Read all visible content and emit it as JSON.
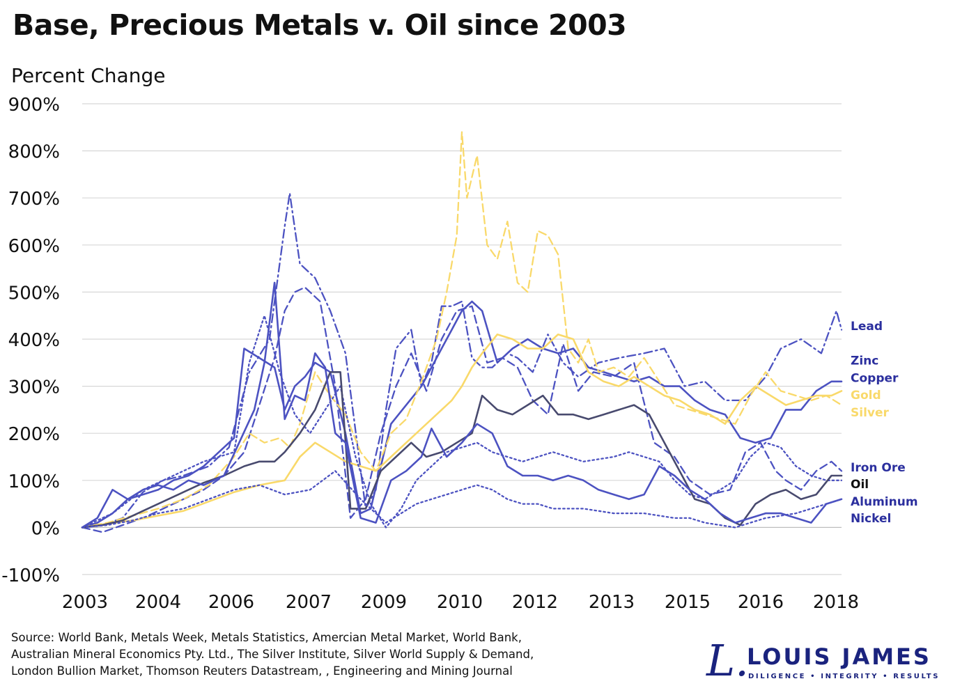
{
  "title": "Base, Precious Metals v. Oil since 2003",
  "ylabel": "Percent Change",
  "source_lines": [
    "Source: World Bank, Metals Week, Metals Statistics, Amercian Metal Market, World Bank,",
    "Australian Mineral Economics Pty. Ltd., The Silver Institute, Silver World Supply & Demand,",
    "London Bullion Market, Thomson Reuters Datastream, , Engineering and Mining Journal"
  ],
  "logo": {
    "mark": "L.",
    "name": "LOUIS JAMES",
    "tagline": "DILIGENCE • INTEGRITY • RESULTS"
  },
  "colors": {
    "blue": "#4c52c1",
    "dark": "#484a6e",
    "gold": "#f9d96a",
    "grid": "#d7d7d7",
    "label_blue": "#2b2f9e"
  },
  "chart_data": {
    "type": "line",
    "xticks": [
      "2003",
      "2004",
      "2006",
      "2007",
      "2009",
      "2010",
      "2012",
      "2013",
      "2015",
      "2016",
      "2018"
    ],
    "ylim": [
      -100,
      900
    ],
    "yticks": [
      -100,
      0,
      100,
      200,
      300,
      400,
      500,
      600,
      700,
      800,
      900
    ],
    "ytick_labels": [
      "-100%",
      "0%",
      "100%",
      "200%",
      "300%",
      "400%",
      "500%",
      "600%",
      "700%",
      "800%",
      "900%"
    ],
    "grid": true,
    "x_unit": "year",
    "xlim": [
      2003.0,
      2018.0
    ],
    "series": [
      {
        "name": "Lead",
        "color": "#4c52c1",
        "dash": "dashdot",
        "x": [
          2003.0,
          2003.4,
          2003.8,
          2004.2,
          2004.6,
          2005.0,
          2005.5,
          2005.9,
          2006.3,
          2006.7,
          2007.0,
          2007.1,
          2007.3,
          2007.6,
          2007.9,
          2008.2,
          2008.6,
          2008.8,
          2009.0,
          2009.2,
          2009.5,
          2009.7,
          2009.9,
          2010.1,
          2010.3,
          2010.5,
          2010.7,
          2010.9,
          2011.1,
          2011.4,
          2011.6,
          2011.9,
          2012.2,
          2012.5,
          2012.8,
          2013.2,
          2013.6,
          2014.1,
          2014.5,
          2014.9,
          2015.3,
          2015.7,
          2016.1,
          2016.5,
          2016.8,
          2017.2,
          2017.6,
          2017.9,
          2018.0
        ],
        "y": [
          0,
          5,
          20,
          75,
          100,
          110,
          130,
          170,
          330,
          400,
          640,
          710,
          560,
          530,
          460,
          370,
          40,
          80,
          250,
          380,
          420,
          300,
          350,
          470,
          470,
          480,
          360,
          340,
          340,
          370,
          360,
          330,
          410,
          350,
          320,
          350,
          360,
          370,
          380,
          300,
          310,
          270,
          270,
          320,
          380,
          400,
          370,
          460,
          420
        ]
      },
      {
        "name": "Zinc",
        "color": "#4c52c1",
        "dash": "dash",
        "x": [
          2003.0,
          2003.4,
          2003.8,
          2004.2,
          2004.6,
          2005.0,
          2005.4,
          2005.8,
          2006.2,
          2006.5,
          2006.8,
          2007.0,
          2007.2,
          2007.4,
          2007.7,
          2008.0,
          2008.3,
          2008.6,
          2008.9,
          2009.2,
          2009.5,
          2009.8,
          2010.1,
          2010.4,
          2010.7,
          2011.0,
          2011.3,
          2011.6,
          2011.9,
          2012.2,
          2012.5,
          2012.8,
          2013.1,
          2013.5,
          2013.9,
          2014.3,
          2014.7,
          2015.0,
          2015.4,
          2015.8,
          2016.1,
          2016.4,
          2016.7,
          2016.9,
          2017.2,
          2017.5,
          2017.8,
          2018.0
        ],
        "y": [
          0,
          -10,
          5,
          20,
          40,
          60,
          80,
          110,
          160,
          260,
          360,
          460,
          500,
          510,
          480,
          300,
          20,
          60,
          200,
          300,
          370,
          290,
          400,
          460,
          470,
          350,
          360,
          340,
          270,
          240,
          390,
          290,
          330,
          320,
          350,
          180,
          150,
          100,
          70,
          80,
          160,
          180,
          120,
          100,
          80,
          120,
          140,
          120
        ]
      },
      {
        "name": "Copper",
        "color": "#4c52c1",
        "dash": "solid",
        "x": [
          2003.0,
          2003.3,
          2003.6,
          2003.9,
          2004.2,
          2004.5,
          2004.8,
          2005.1,
          2005.4,
          2005.7,
          2006.0,
          2006.2,
          2006.5,
          2006.8,
          2007.0,
          2007.2,
          2007.4,
          2007.6,
          2007.9,
          2008.2,
          2008.5,
          2008.7,
          2008.9,
          2009.1,
          2009.4,
          2009.7,
          2009.9,
          2010.1,
          2010.3,
          2010.5,
          2010.7,
          2010.9,
          2011.2,
          2011.5,
          2011.8,
          2012.1,
          2012.4,
          2012.7,
          2013.0,
          2013.3,
          2013.6,
          2013.9,
          2014.2,
          2014.5,
          2014.8,
          2015.1,
          2015.4,
          2015.7,
          2016.0,
          2016.3,
          2016.6,
          2016.9,
          2017.2,
          2017.5,
          2017.8,
          2018.0
        ],
        "y": [
          0,
          10,
          30,
          60,
          70,
          80,
          100,
          110,
          130,
          160,
          190,
          380,
          360,
          340,
          250,
          300,
          320,
          350,
          330,
          200,
          30,
          40,
          130,
          220,
          260,
          300,
          340,
          380,
          420,
          460,
          480,
          460,
          350,
          380,
          400,
          380,
          370,
          380,
          340,
          330,
          320,
          310,
          320,
          300,
          300,
          270,
          250,
          240,
          190,
          180,
          190,
          250,
          250,
          290,
          310,
          310
        ]
      },
      {
        "name": "Gold",
        "color": "#f9d96a",
        "dash": "solid",
        "x": [
          2003.0,
          2003.5,
          2004.0,
          2004.5,
          2005.0,
          2005.5,
          2006.0,
          2006.5,
          2007.0,
          2007.3,
          2007.6,
          2007.9,
          2008.2,
          2008.5,
          2008.8,
          2009.1,
          2009.4,
          2009.7,
          2010.0,
          2010.3,
          2010.5,
          2010.7,
          2010.9,
          2011.2,
          2011.5,
          2011.8,
          2012.1,
          2012.4,
          2012.7,
          2013.0,
          2013.3,
          2013.6,
          2013.9,
          2014.2,
          2014.5,
          2014.8,
          2015.1,
          2015.4,
          2015.7,
          2016.0,
          2016.3,
          2016.6,
          2016.9,
          2017.2,
          2017.5,
          2017.8,
          2018.0
        ],
        "y": [
          0,
          8,
          15,
          25,
          35,
          55,
          75,
          90,
          100,
          150,
          180,
          160,
          140,
          130,
          120,
          150,
          180,
          210,
          240,
          270,
          300,
          340,
          370,
          410,
          400,
          380,
          380,
          410,
          400,
          330,
          310,
          300,
          320,
          300,
          280,
          270,
          250,
          240,
          220,
          270,
          300,
          280,
          260,
          270,
          280,
          280,
          290
        ]
      },
      {
        "name": "Silver",
        "color": "#f9d96a",
        "dash": "dash",
        "x": [
          2003.0,
          2003.5,
          2004.0,
          2004.5,
          2005.0,
          2005.5,
          2006.0,
          2006.3,
          2006.6,
          2006.9,
          2007.1,
          2007.3,
          2007.6,
          2007.9,
          2008.2,
          2008.5,
          2008.8,
          2009.1,
          2009.4,
          2009.7,
          2010.0,
          2010.2,
          2010.4,
          2010.5,
          2010.6,
          2010.8,
          2011.0,
          2011.2,
          2011.4,
          2011.6,
          2011.8,
          2012.0,
          2012.2,
          2012.4,
          2012.6,
          2012.8,
          2013.0,
          2013.2,
          2013.5,
          2013.8,
          2014.1,
          2014.4,
          2014.7,
          2015.0,
          2015.3,
          2015.6,
          2015.9,
          2016.2,
          2016.5,
          2016.8,
          2017.1,
          2017.4,
          2017.7,
          2018.0
        ],
        "y": [
          0,
          10,
          25,
          40,
          60,
          90,
          150,
          200,
          180,
          190,
          170,
          220,
          330,
          280,
          240,
          160,
          120,
          200,
          230,
          310,
          400,
          500,
          620,
          840,
          700,
          790,
          600,
          570,
          650,
          520,
          500,
          630,
          620,
          580,
          380,
          350,
          400,
          330,
          340,
          320,
          360,
          310,
          260,
          250,
          240,
          230,
          220,
          280,
          330,
          290,
          280,
          270,
          280,
          260
        ]
      },
      {
        "name": "Iron Ore",
        "color": "#4c52c1",
        "dash": "dot",
        "x": [
          2003.0,
          2003.6,
          2004.2,
          2004.8,
          2005.4,
          2006.0,
          2006.3,
          2006.6,
          2006.9,
          2007.2,
          2007.5,
          2007.8,
          2008.1,
          2008.4,
          2008.7,
          2009.0,
          2009.3,
          2009.6,
          2009.9,
          2010.2,
          2010.5,
          2010.8,
          2011.1,
          2011.4,
          2011.7,
          2012.0,
          2012.3,
          2012.6,
          2012.9,
          2013.2,
          2013.5,
          2013.8,
          2014.1,
          2014.4,
          2014.7,
          2015.0,
          2015.3,
          2015.6,
          2015.9,
          2016.2,
          2016.5,
          2016.8,
          2017.1,
          2017.4,
          2017.7,
          2018.0
        ],
        "y": [
          0,
          30,
          80,
          110,
          140,
          160,
          350,
          450,
          330,
          240,
          200,
          250,
          300,
          150,
          50,
          0,
          40,
          100,
          130,
          160,
          170,
          180,
          160,
          150,
          140,
          150,
          160,
          150,
          140,
          145,
          150,
          160,
          150,
          140,
          100,
          70,
          60,
          80,
          100,
          150,
          180,
          170,
          130,
          110,
          100,
          100
        ]
      },
      {
        "name": "Oil",
        "color": "#484a6e",
        "dash": "solid",
        "x": [
          2003.0,
          2003.4,
          2003.8,
          2004.2,
          2004.6,
          2005.0,
          2005.4,
          2005.8,
          2006.2,
          2006.5,
          2006.8,
          2007.0,
          2007.3,
          2007.6,
          2007.9,
          2008.1,
          2008.3,
          2008.6,
          2008.9,
          2009.2,
          2009.5,
          2009.8,
          2010.1,
          2010.4,
          2010.7,
          2010.9,
          2011.2,
          2011.5,
          2011.8,
          2012.1,
          2012.4,
          2012.7,
          2013.0,
          2013.3,
          2013.6,
          2013.9,
          2014.2,
          2014.5,
          2014.8,
          2015.1,
          2015.4,
          2015.7,
          2016.0,
          2016.3,
          2016.6,
          2016.9,
          2017.2,
          2017.5,
          2017.8,
          2018.0
        ],
        "y": [
          0,
          5,
          15,
          35,
          55,
          75,
          95,
          110,
          130,
          140,
          140,
          160,
          200,
          250,
          330,
          330,
          40,
          40,
          120,
          150,
          180,
          150,
          160,
          180,
          200,
          280,
          250,
          240,
          260,
          280,
          240,
          240,
          230,
          240,
          250,
          260,
          240,
          180,
          120,
          60,
          50,
          20,
          5,
          50,
          70,
          80,
          60,
          70,
          110,
          110
        ]
      },
      {
        "name": "Aluminum",
        "color": "#4c52c1",
        "dash": "solid",
        "x": [
          2003.0,
          2003.3,
          2003.6,
          2003.9,
          2004.2,
          2004.5,
          2004.8,
          2005.1,
          2005.4,
          2005.8,
          2006.1,
          2006.4,
          2006.6,
          2006.8,
          2007.0,
          2007.2,
          2007.4,
          2007.6,
          2007.8,
          2008.0,
          2008.2,
          2008.5,
          2008.8,
          2009.1,
          2009.4,
          2009.7,
          2009.9,
          2010.2,
          2010.5,
          2010.8,
          2011.1,
          2011.4,
          2011.7,
          2012.0,
          2012.3,
          2012.6,
          2012.9,
          2013.2,
          2013.5,
          2013.8,
          2014.1,
          2014.4,
          2014.7,
          2015.0,
          2015.3,
          2015.6,
          2015.9,
          2016.2,
          2016.5,
          2016.8,
          2017.1,
          2017.4,
          2017.7,
          2018.0
        ],
        "y": [
          0,
          20,
          80,
          60,
          80,
          90,
          80,
          100,
          90,
          110,
          180,
          250,
          350,
          520,
          230,
          280,
          270,
          370,
          340,
          200,
          180,
          20,
          10,
          100,
          120,
          150,
          210,
          150,
          180,
          220,
          200,
          130,
          110,
          110,
          100,
          110,
          100,
          80,
          70,
          60,
          70,
          130,
          110,
          80,
          60,
          30,
          10,
          20,
          30,
          30,
          20,
          10,
          50,
          60
        ]
      },
      {
        "name": "Nickel",
        "color": "#4c52c1",
        "dash": "dot",
        "x": [
          2003.0,
          2003.5,
          2004.0,
          2004.5,
          2005.0,
          2005.5,
          2006.0,
          2006.5,
          2007.0,
          2007.5,
          2008.0,
          2008.5,
          2009.0,
          2009.3,
          2009.6,
          2009.9,
          2010.2,
          2010.5,
          2010.8,
          2011.1,
          2011.4,
          2011.7,
          2012.0,
          2012.3,
          2012.6,
          2012.9,
          2013.2,
          2013.5,
          2013.8,
          2014.1,
          2014.4,
          2014.7,
          2015.0,
          2015.3,
          2015.6,
          2015.9,
          2016.2,
          2016.5,
          2016.8,
          2017.1,
          2017.4,
          2017.7,
          2018.0
        ],
        "y": [
          0,
          5,
          15,
          30,
          40,
          60,
          80,
          90,
          70,
          80,
          120,
          60,
          10,
          30,
          50,
          60,
          70,
          80,
          90,
          80,
          60,
          50,
          50,
          40,
          40,
          40,
          35,
          30,
          30,
          30,
          25,
          20,
          20,
          10,
          5,
          0,
          10,
          20,
          25,
          30,
          40,
          50,
          60
        ]
      }
    ],
    "end_labels": [
      {
        "text": "Lead",
        "color": "#2b2f9e",
        "y": 428
      },
      {
        "text": "Zinc",
        "color": "#2b2f9e",
        "y": 355
      },
      {
        "text": "Copper",
        "color": "#2b2f9e",
        "y": 318
      },
      {
        "text": "Gold",
        "color": "#f9d96a",
        "y": 282
      },
      {
        "text": "Silver",
        "color": "#f9d96a",
        "y": 245
      },
      {
        "text": "Iron Ore",
        "color": "#2b2f9e",
        "y": 128
      },
      {
        "text": "Oil",
        "color": "#111111",
        "y": 92
      },
      {
        "text": "Aluminum",
        "color": "#2b2f9e",
        "y": 55
      },
      {
        "text": "Nickel",
        "color": "#2b2f9e",
        "y": 20
      }
    ]
  }
}
